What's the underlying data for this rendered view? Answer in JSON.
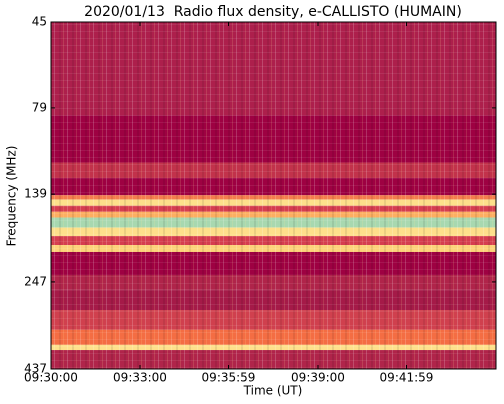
{
  "chart_data": {
    "type": "spectrogram",
    "title": "2020/01/13  Radio flux density, e-CALLISTO (HUMAIN)",
    "x_label": "Time (UT)",
    "y_label": "Frequency (MHz)",
    "xlim": [
      "09:30:00",
      "09:45:00"
    ],
    "xticks": [
      "09:30:00",
      "09:33:00",
      "09:35:59",
      "09:39:00",
      "09:41:59"
    ],
    "ylim": [
      437,
      45
    ],
    "yticks": [
      45,
      79,
      139,
      247,
      437
    ],
    "log_y": true,
    "bands": [
      {
        "range": [
          45,
          83
        ],
        "color": "#ad1f4c"
      },
      {
        "range": [
          83,
          113
        ],
        "color": "#9e0142"
      },
      {
        "range": [
          113,
          125
        ],
        "color": "#c2324b"
      },
      {
        "range": [
          125,
          140
        ],
        "color": "#9e0142"
      },
      {
        "range": [
          140,
          144
        ],
        "color": "#f47d4d"
      },
      {
        "range": [
          144,
          150
        ],
        "color": "#fde08b"
      },
      {
        "range": [
          150,
          156
        ],
        "color": "#d53e4f"
      },
      {
        "range": [
          156,
          162
        ],
        "color": "#fdae61"
      },
      {
        "range": [
          162,
          173
        ],
        "color": "#a8d8b0"
      },
      {
        "range": [
          173,
          183
        ],
        "color": "#fee08b"
      },
      {
        "range": [
          183,
          194
        ],
        "color": "#d53e4f"
      },
      {
        "range": [
          194,
          203
        ],
        "color": "#fdd27a"
      },
      {
        "range": [
          203,
          236
        ],
        "color": "#9e0142"
      },
      {
        "range": [
          236,
          260
        ],
        "color": "#b0244a"
      },
      {
        "range": [
          260,
          297
        ],
        "color": "#a51a48"
      },
      {
        "range": [
          297,
          338
        ],
        "color": "#d0404e"
      },
      {
        "range": [
          338,
          373
        ],
        "color": "#f46d43"
      },
      {
        "range": [
          373,
          386
        ],
        "color": "#fee08b"
      },
      {
        "range": [
          386,
          437
        ],
        "color": "#b0244a"
      }
    ]
  }
}
